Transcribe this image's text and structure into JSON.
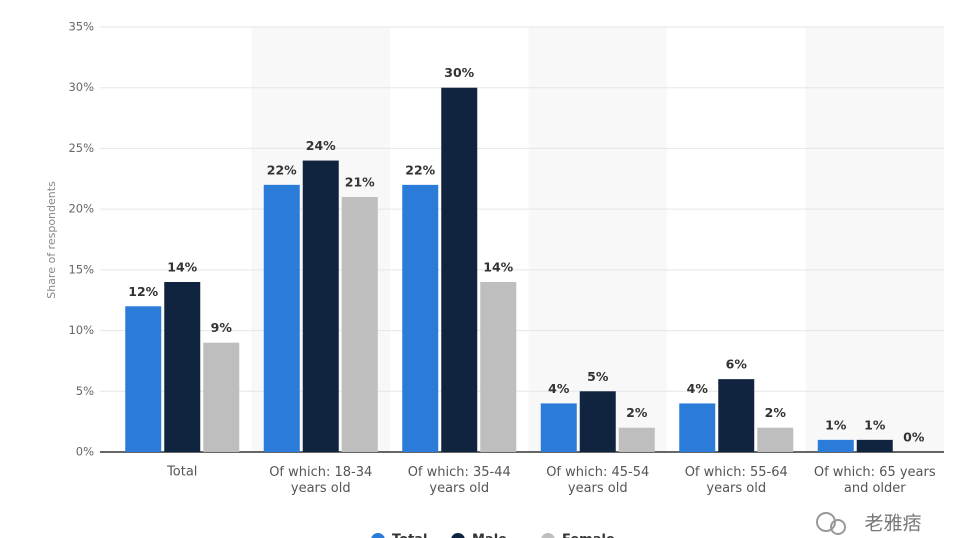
{
  "chart_data": {
    "type": "bar",
    "y_label": "Share of respondents",
    "categories": [
      "Total",
      "Of which: 18-34 years old",
      "Of which: 35-44 years old",
      "Of which: 45-54 years old",
      "Of which: 55-64 years old",
      "Of which: 65 years and older"
    ],
    "series": [
      {
        "name": "Total",
        "color": "#2b7bd9",
        "values": [
          12,
          22,
          22,
          4,
          4,
          1
        ],
        "value_labels": [
          "12%",
          "22%",
          "22%",
          "4%",
          "4%",
          "1%"
        ]
      },
      {
        "name": "Male",
        "color": "#10243f",
        "values": [
          14,
          24,
          30,
          5,
          6,
          1
        ],
        "value_labels": [
          "14%",
          "24%",
          "30%",
          "5%",
          "6%",
          "1%"
        ]
      },
      {
        "name": "Female",
        "color": "#bebebe",
        "values": [
          9,
          21,
          14,
          2,
          2,
          0
        ],
        "value_labels": [
          "9%",
          "21%",
          "14%",
          "2%",
          "2%",
          "0%"
        ]
      }
    ],
    "ylim": [
      0,
      35
    ],
    "yticks": [
      {
        "value": 0,
        "label": "0%"
      },
      {
        "value": 5,
        "label": "5%"
      },
      {
        "value": 10,
        "label": "10%"
      },
      {
        "value": 15,
        "label": "15%"
      },
      {
        "value": 20,
        "label": "20%"
      },
      {
        "value": 25,
        "label": "25%"
      },
      {
        "value": 30,
        "label": "30%"
      },
      {
        "value": 35,
        "label": "35%"
      }
    ],
    "grid": true,
    "legend_position": "bottom",
    "watermark": "老雅痞"
  }
}
